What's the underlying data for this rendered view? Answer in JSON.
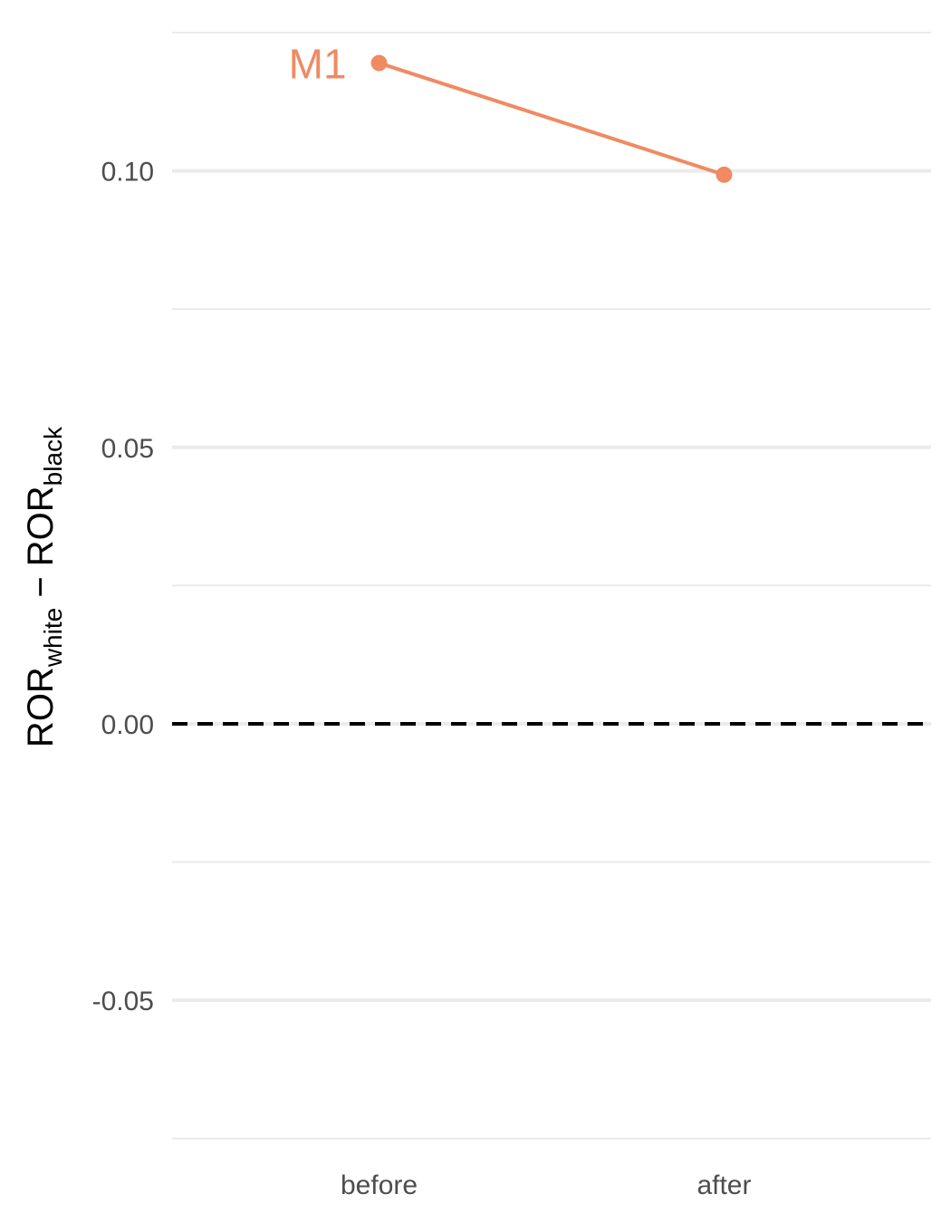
{
  "chart_data": {
    "type": "line",
    "categories": [
      "before",
      "after"
    ],
    "series": [
      {
        "name": "M1",
        "values": [
          0.1195,
          0.0993
        ],
        "color": "#F08A62"
      }
    ],
    "ylabel": {
      "main1": "ROR",
      "sub1": "white",
      "minus": " − ",
      "main2": "ROR",
      "sub2": "black"
    },
    "ylim": [
      -0.0775,
      0.125
    ],
    "y_ticks": [
      -0.05,
      0.0,
      0.05,
      0.1
    ],
    "y_tick_labels": [
      "-0.05",
      "0.00",
      "0.05",
      "0.10"
    ],
    "y_minor_ticks": [
      -0.075,
      -0.025,
      0.025,
      0.075,
      0.125
    ],
    "reference_line": {
      "y": 0.0,
      "style": "dashed",
      "color": "#000000"
    },
    "grid": true,
    "legend": "none",
    "gridline_color": "#EBEBEB"
  }
}
